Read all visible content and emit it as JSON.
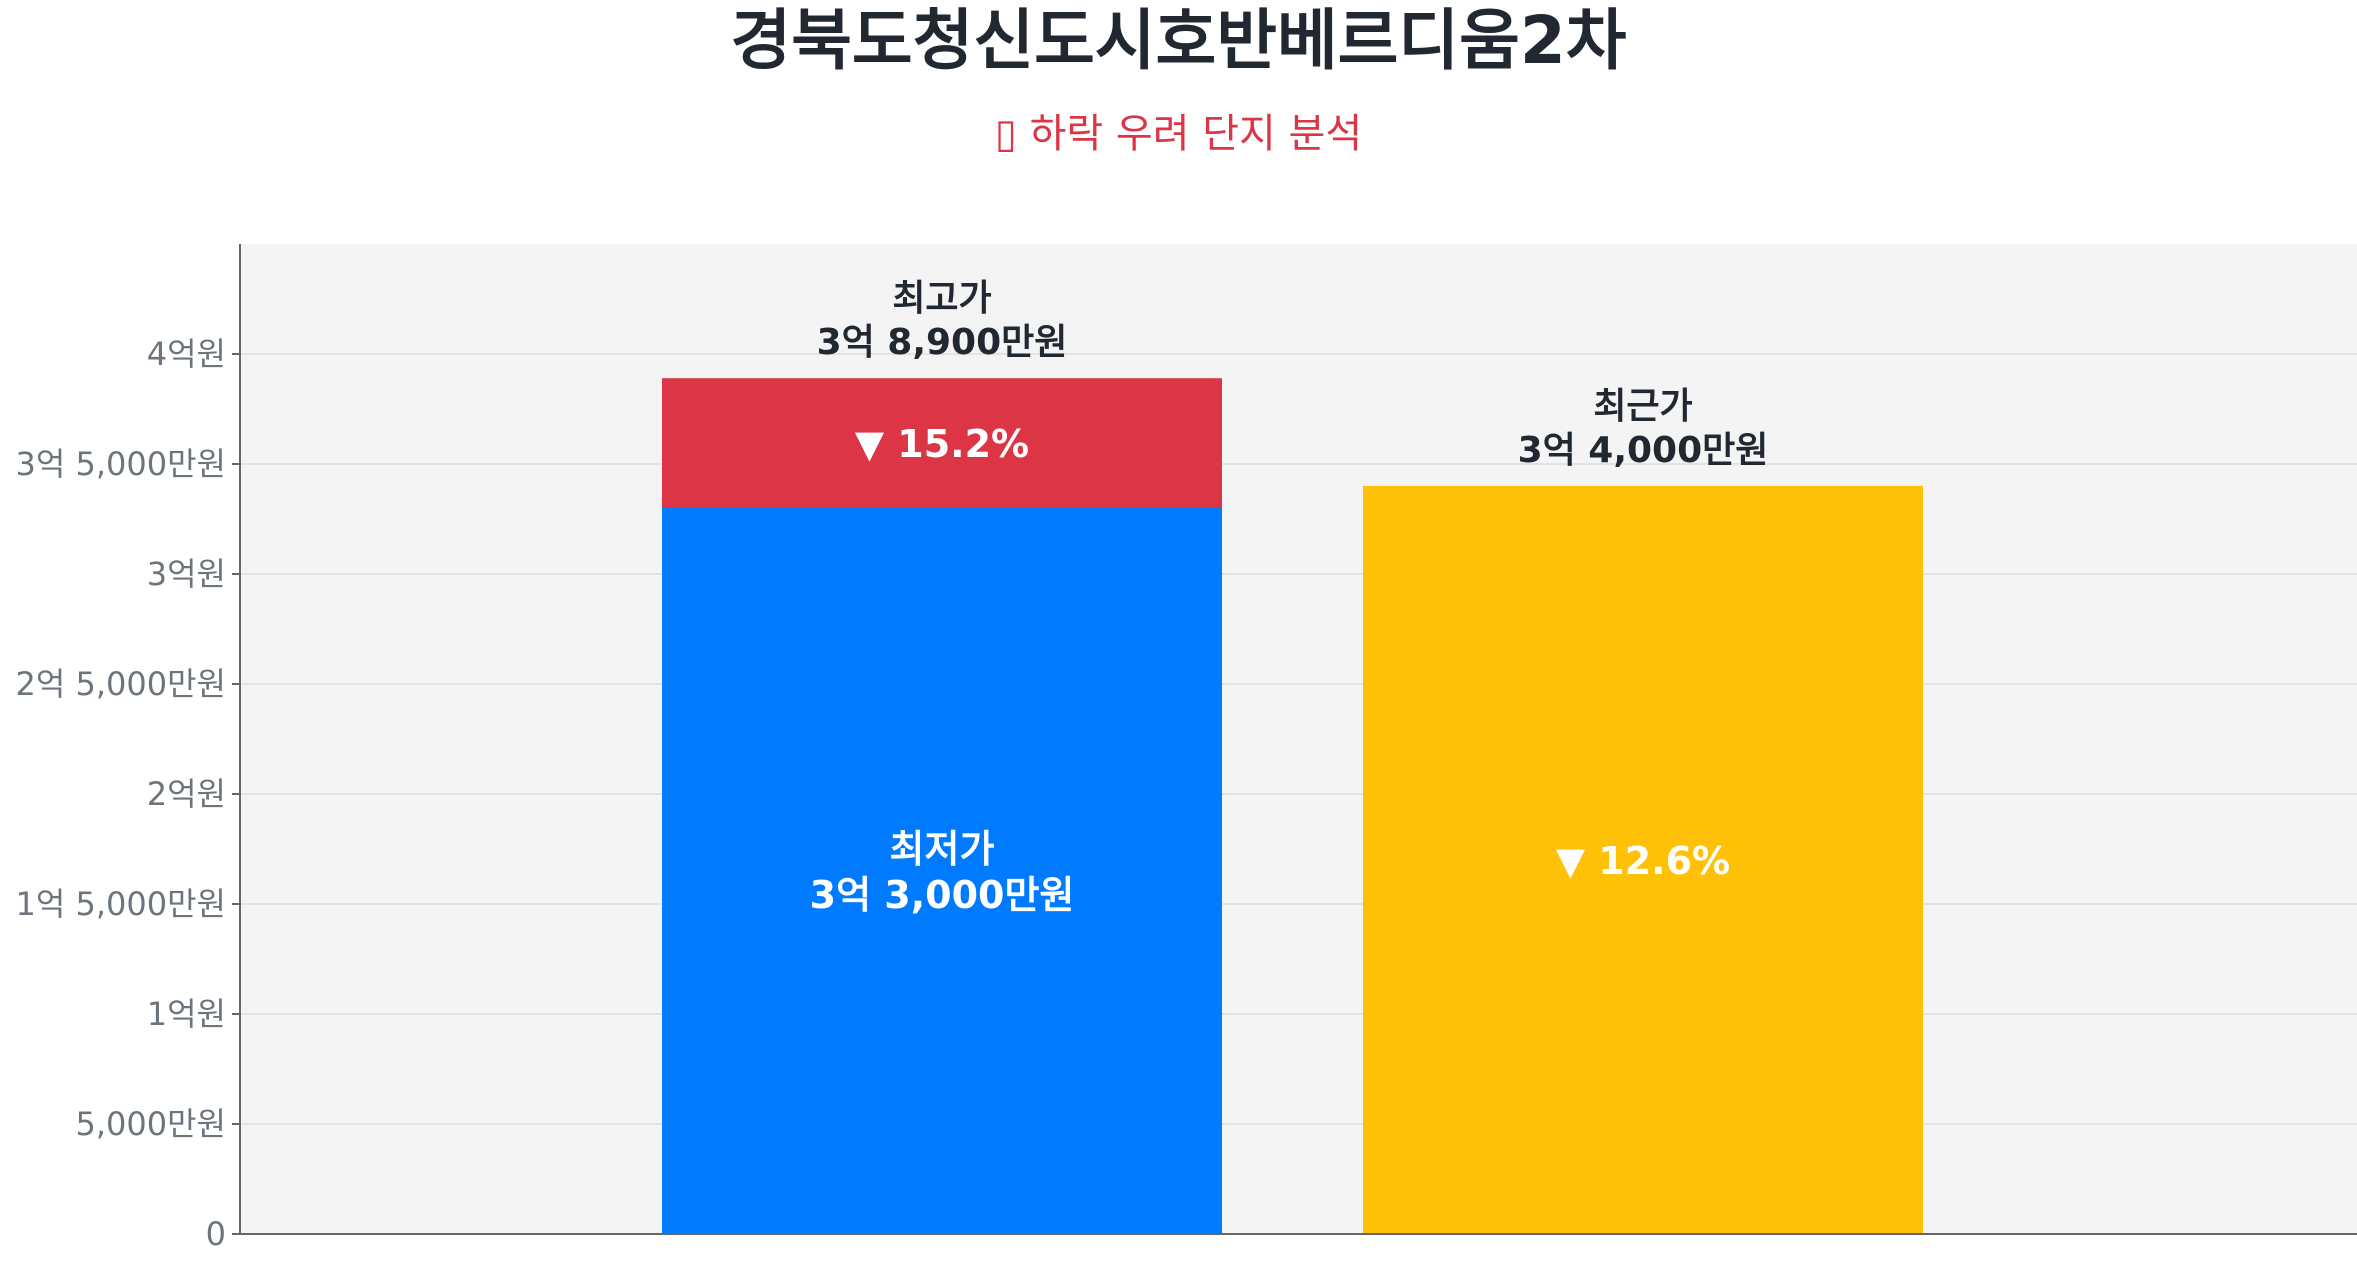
{
  "title": "경북도청신도시호반베르디움2차",
  "subtitle": "▯ 하락 우려 단지 분석",
  "colors": {
    "plot_bg": "#f4f4f4",
    "grid": "#e3e3e3",
    "axis": "#666666",
    "tick_text": "#6c757d",
    "label_text": "#222831",
    "low": "#007bff",
    "drop": "#dc3545",
    "recent": "#ffc107",
    "white": "#ffffff"
  },
  "chart_data": {
    "type": "bar",
    "y_unit": "만원",
    "ylim": [
      0,
      45000
    ],
    "y_ticks": [
      {
        "value": 0,
        "label": "0"
      },
      {
        "value": 5000,
        "label": "5,000만원"
      },
      {
        "value": 10000,
        "label": "1억원"
      },
      {
        "value": 15000,
        "label": "1억 5,000만원"
      },
      {
        "value": 20000,
        "label": "2억원"
      },
      {
        "value": 25000,
        "label": "2억 5,000만원"
      },
      {
        "value": 30000,
        "label": "3억원"
      },
      {
        "value": 35000,
        "label": "3억 5,000만원"
      },
      {
        "value": 40000,
        "label": "4억원"
      }
    ],
    "grid": true,
    "bars": [
      {
        "segments": [
          {
            "from": 0,
            "to": 33000,
            "color_key": "low",
            "label": [
              "최저가",
              "3억 3,000만원"
            ]
          },
          {
            "from": 33000,
            "to": 38900,
            "color_key": "drop",
            "label": [
              "▼ 15.2%"
            ]
          }
        ],
        "top_label": [
          "최고가",
          "3억 8,900만원"
        ]
      },
      {
        "segments": [
          {
            "from": 0,
            "to": 34000,
            "color_key": "recent",
            "label": [
              "▼ 12.6%"
            ]
          }
        ],
        "top_label": [
          "최근가",
          "3억 4,000만원"
        ]
      }
    ]
  }
}
